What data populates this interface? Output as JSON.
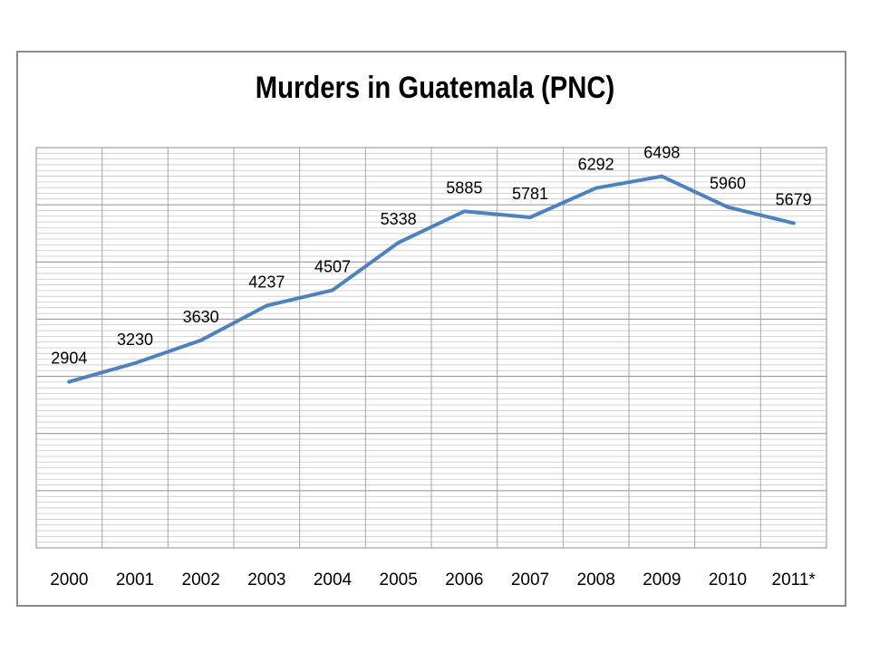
{
  "chart_data": {
    "type": "line",
    "title": "Murders in Guatemala (PNC)",
    "xlabel": "",
    "ylabel": "",
    "categories": [
      "2000",
      "2001",
      "2002",
      "2003",
      "2004",
      "2005",
      "2006",
      "2007",
      "2008",
      "2009",
      "2010",
      "2011*"
    ],
    "series": [
      {
        "values": [
          2904,
          3230,
          3630,
          4237,
          4507,
          5338,
          5885,
          5781,
          6292,
          6498,
          5960,
          5679
        ],
        "color": "#4f81bd"
      }
    ],
    "data_labels": [
      "2904",
      "3230",
      "3630",
      "4237",
      "4507",
      "5338",
      "5885",
      "5781",
      "6292",
      "6498",
      "5960",
      "5679"
    ],
    "ylim": [
      0,
      7000
    ],
    "grid": true,
    "legend": "none"
  }
}
